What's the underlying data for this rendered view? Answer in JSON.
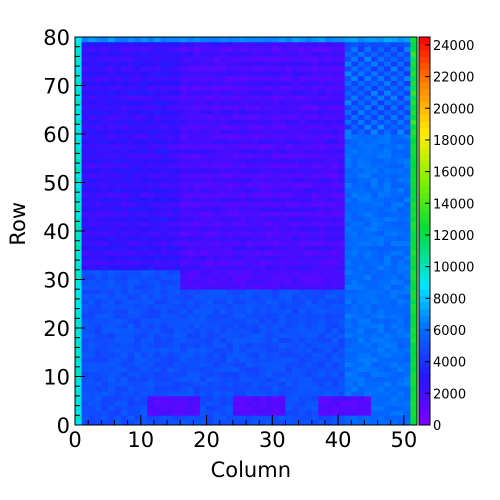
{
  "chart_data": {
    "type": "heatmap",
    "title": "",
    "xlabel": "Column",
    "ylabel": "Row",
    "xlim": [
      0,
      52
    ],
    "ylim": [
      0,
      80
    ],
    "x_ticks": [
      "0",
      "10",
      "20",
      "30",
      "40",
      "50"
    ],
    "y_ticks": [
      "0",
      "10",
      "20",
      "30",
      "40",
      "50",
      "60",
      "70",
      "80"
    ],
    "zlim": [
      0,
      24500
    ],
    "colorbar_ticks": [
      "0",
      "2000",
      "4000",
      "6000",
      "8000",
      "10000",
      "12000",
      "14000",
      "16000",
      "18000",
      "20000",
      "22000",
      "24000"
    ],
    "colormap": "rainbow",
    "columns": 52,
    "rows": 80,
    "regions": [
      {
        "name": "background-lower",
        "cols": [
          0,
          52
        ],
        "rows": [
          0,
          80
        ],
        "value": 5000
      },
      {
        "name": "upper-band",
        "cols": [
          0,
          41
        ],
        "rows": [
          32,
          80
        ],
        "value": 2300
      },
      {
        "name": "upper-center-block",
        "cols": [
          16,
          41
        ],
        "rows": [
          28,
          80
        ],
        "value": 1700
      },
      {
        "name": "right-column-block",
        "cols": [
          41,
          52
        ],
        "rows": [
          0,
          60
        ],
        "value": 6000
      },
      {
        "name": "right-top-checker",
        "cols": [
          41,
          52
        ],
        "rows": [
          60,
          78
        ],
        "value": 5500
      },
      {
        "name": "top-edge-row",
        "cols": [
          0,
          52
        ],
        "rows": [
          79,
          80
        ],
        "value": 7000
      },
      {
        "name": "bottom-pad-1",
        "cols": [
          11,
          19
        ],
        "rows": [
          2,
          6
        ],
        "value": 1400
      },
      {
        "name": "bottom-pad-2",
        "cols": [
          24,
          32
        ],
        "rows": [
          2,
          6
        ],
        "value": 1400
      },
      {
        "name": "bottom-pad-3",
        "cols": [
          37,
          45
        ],
        "rows": [
          2,
          6
        ],
        "value": 1400
      },
      {
        "name": "edge-column-left",
        "cols": [
          0,
          1
        ],
        "rows": [
          0,
          80
        ],
        "value": 9500
      },
      {
        "name": "edge-column-right",
        "cols": [
          51,
          52
        ],
        "rows": [
          0,
          80
        ],
        "value": 12500
      }
    ]
  }
}
